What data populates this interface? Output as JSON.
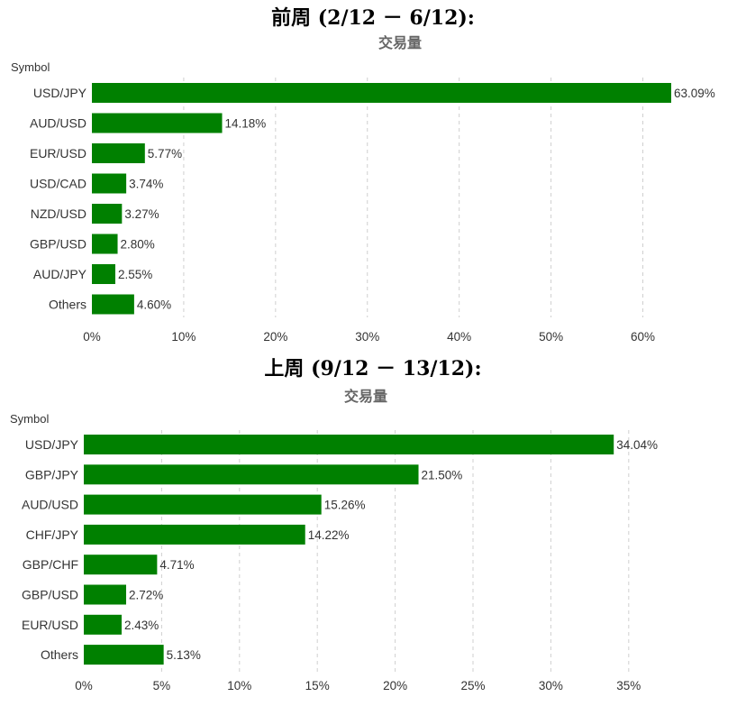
{
  "chart_data": [
    {
      "heading": "前周 (2/12 － 6/12):",
      "type": "bar",
      "orientation": "horizontal",
      "title": "交易量",
      "ylabel": "Symbol",
      "xlabel": "",
      "categories": [
        "USD/JPY",
        "AUD/USD",
        "EUR/USD",
        "USD/CAD",
        "NZD/USD",
        "GBP/USD",
        "AUD/JPY",
        "Others"
      ],
      "values": [
        63.09,
        14.18,
        5.77,
        3.74,
        3.27,
        2.8,
        2.55,
        4.6
      ],
      "value_labels": [
        "63.09%",
        "14.18%",
        "5.77%",
        "3.74%",
        "3.27%",
        "2.80%",
        "2.55%",
        "4.60%"
      ],
      "xlim": [
        0,
        63.09
      ],
      "xticks": [
        0,
        10,
        20,
        30,
        40,
        50,
        60
      ],
      "xtick_labels": [
        "0%",
        "10%",
        "20%",
        "30%",
        "40%",
        "50%",
        "60%"
      ],
      "grid": true,
      "legend": "none",
      "bar_color": "#008000"
    },
    {
      "heading": "上周 (9/12 － 13/12):",
      "type": "bar",
      "orientation": "horizontal",
      "title": "交易量",
      "ylabel": "Symbol",
      "xlabel": "",
      "categories": [
        "USD/JPY",
        "GBP/JPY",
        "AUD/USD",
        "CHF/JPY",
        "GBP/CHF",
        "GBP/USD",
        "EUR/USD",
        "Others"
      ],
      "values": [
        34.04,
        21.5,
        15.26,
        14.22,
        4.71,
        2.72,
        2.43,
        5.13
      ],
      "value_labels": [
        "34.04%",
        "21.50%",
        "15.26%",
        "14.22%",
        "4.71%",
        "2.72%",
        "2.43%",
        "5.13%"
      ],
      "xlim": [
        0,
        37.5
      ],
      "xticks": [
        0,
        5,
        10,
        15,
        20,
        25,
        30,
        35
      ],
      "xtick_labels": [
        "0%",
        "5%",
        "10%",
        "15%",
        "20%",
        "25%",
        "30%",
        "35%"
      ],
      "grid": true,
      "legend": "none",
      "bar_color": "#008000"
    }
  ]
}
